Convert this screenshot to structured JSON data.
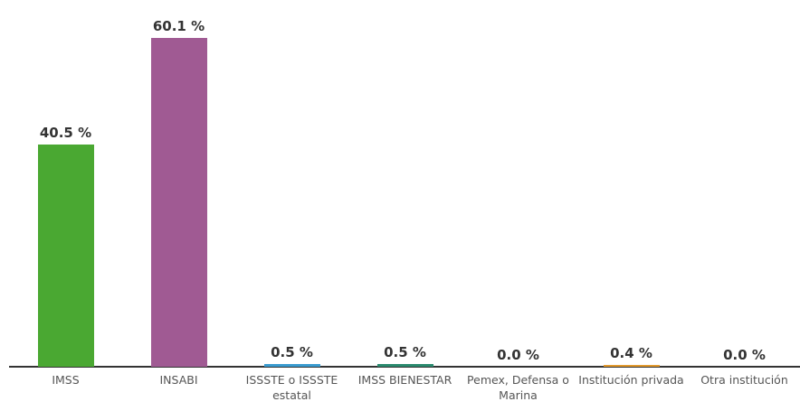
{
  "chart_data": {
    "type": "bar",
    "categories": [
      "IMSS",
      "INSABI",
      "ISSSTE o ISSSTE estatal",
      "IMSS BIENESTAR",
      "Pemex, Defensa o Marina",
      "Institución privada",
      "Otra institución"
    ],
    "values": [
      40.5,
      60.1,
      0.5,
      0.5,
      0.0,
      0.4,
      0.0
    ],
    "value_labels": [
      "40.5 %",
      "60.1 %",
      "0.5 %",
      "0.5 %",
      "0.0 %",
      "0.4 %",
      "0.0 %"
    ],
    "colors": [
      "#4aa832",
      "#a05a93",
      "#3a9bd0",
      "#2a8a6e",
      "#8a6fb0",
      "#e39a2e",
      "#7f7f7f"
    ],
    "ylim": [
      0,
      62
    ]
  }
}
